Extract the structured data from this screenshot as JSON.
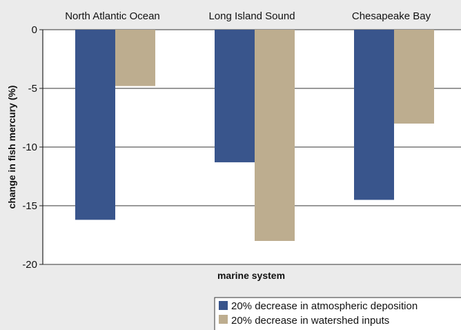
{
  "chart_data": {
    "type": "bar",
    "categories": [
      "North Atlantic Ocean",
      "Long Island Sound",
      "Chesapeake Bay"
    ],
    "series": [
      {
        "name": "20% decrease in atmospheric deposition",
        "values": [
          -16.2,
          -11.3,
          -14.5
        ],
        "color": "#39558c"
      },
      {
        "name": "20% decrease in watershed inputs",
        "values": [
          -4.8,
          -18.0,
          -8.0
        ],
        "color": "#bdad8f"
      }
    ],
    "xlabel": "marine system",
    "ylabel": "change in fish mercury (%)",
    "ylim": [
      -20,
      0
    ],
    "yticks": [
      0,
      -5,
      -10,
      -15,
      -20
    ],
    "x_axis_position": "top",
    "grid": true,
    "legend_position": "bottom-right"
  }
}
